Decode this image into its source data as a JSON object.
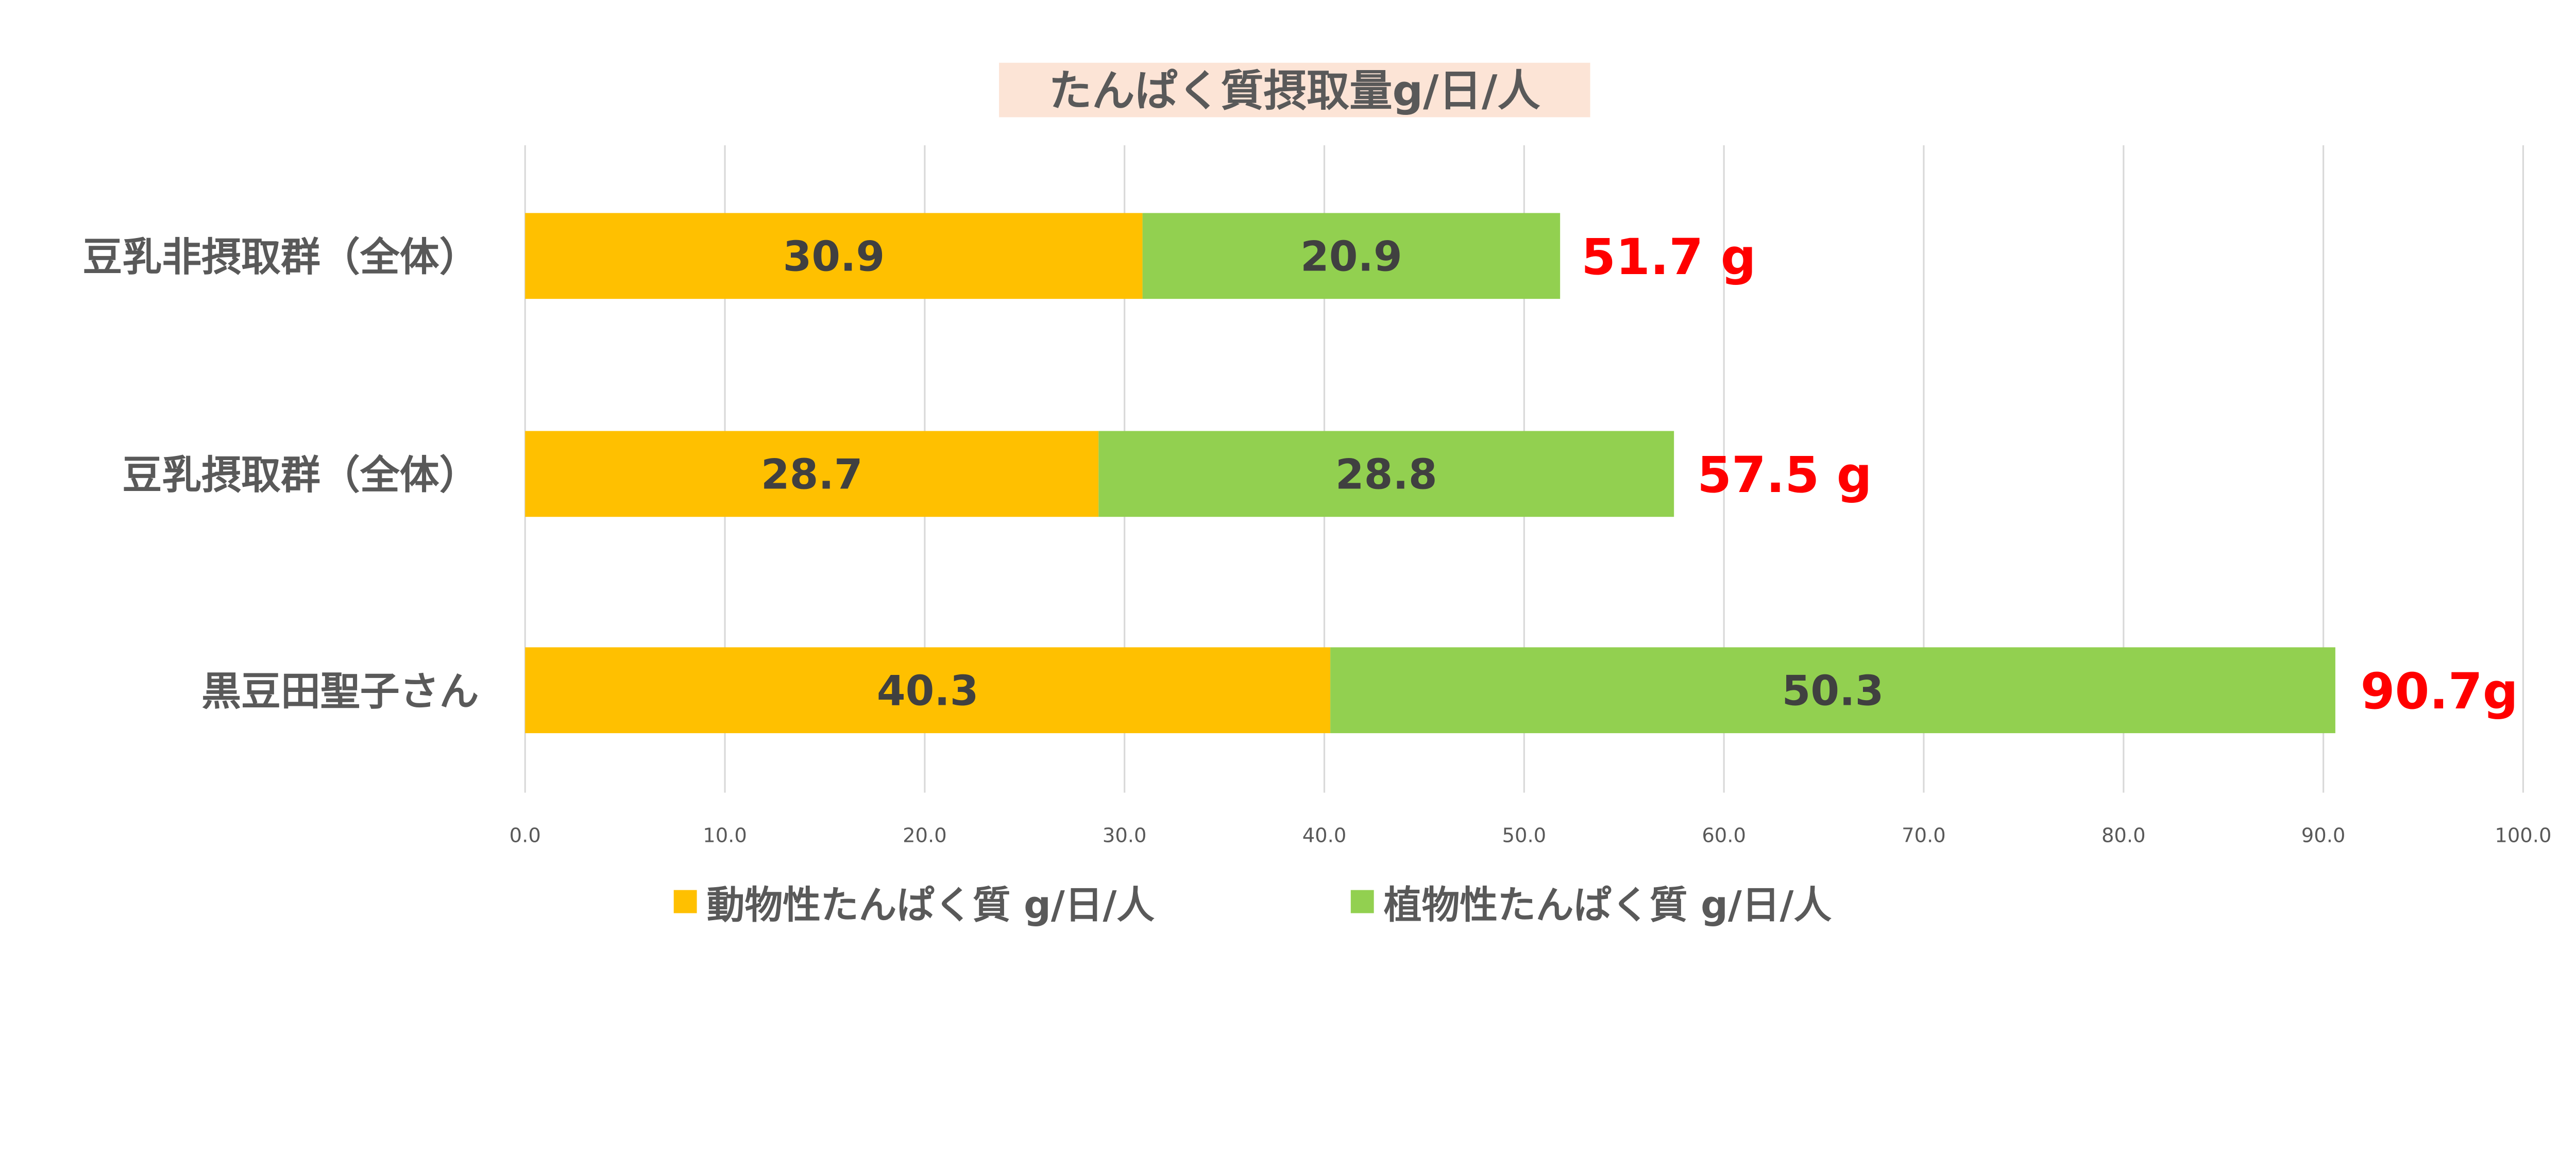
{
  "chart_data": {
    "type": "bar",
    "orientation": "horizontal",
    "stacked": true,
    "title": "たんぱく質摂取量g/日/人",
    "categories": [
      "豆乳非摂取群（全体）",
      "豆乳摂取群（全体）",
      "黒豆田聖子さん"
    ],
    "series": [
      {
        "name": "動物性たんぱく質 g/日/人",
        "values": [
          30.9,
          28.7,
          40.3
        ],
        "color": "#FFC000"
      },
      {
        "name": "植物性たんぱく質 g/日/人",
        "values": [
          20.9,
          28.8,
          50.3
        ],
        "color": "#92D050"
      }
    ],
    "data_labels": [
      [
        "30.9",
        "28.7",
        "40.3"
      ],
      [
        "20.9",
        "28.8",
        "50.3"
      ]
    ],
    "totals": [
      51.7,
      57.5,
      90.7
    ],
    "total_labels": [
      "51.7 g",
      "57.5 g",
      "90.7g"
    ],
    "total_label_color": "#FF0000",
    "title_background": "#FCE4D6",
    "xlim": [
      0,
      100
    ],
    "x_ticks": [
      "0.0",
      "10.0",
      "20.0",
      "30.0",
      "40.0",
      "50.0",
      "60.0",
      "70.0",
      "80.0",
      "90.0",
      "100.0"
    ],
    "grid": true,
    "legend_position": "bottom",
    "xlabel": "",
    "ylabel": ""
  }
}
